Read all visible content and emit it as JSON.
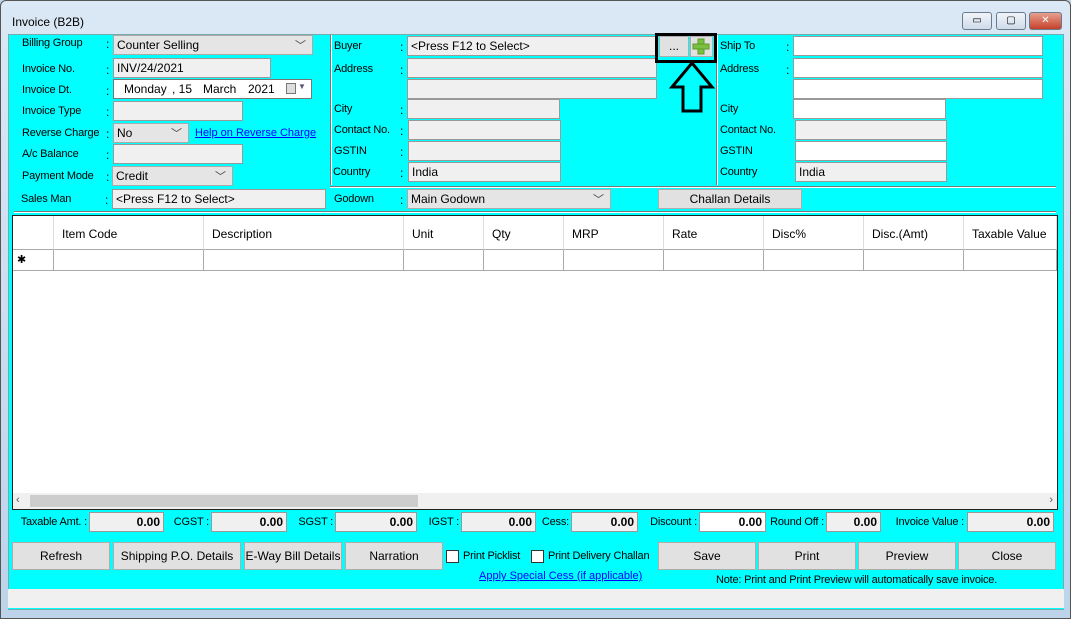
{
  "window": {
    "title": "Invoice (B2B)",
    "minimize": "▭",
    "maximize": "▢",
    "close": "✕"
  },
  "left": {
    "billing_group": {
      "label": "Billing Group",
      "value": "Counter Selling"
    },
    "invoice_no": {
      "label": "Invoice No.",
      "value": "INV/24/2021"
    },
    "invoice_dt": {
      "label": "Invoice Dt.",
      "day": "Monday",
      "date": ", 15",
      "month": "March",
      "year": "2021"
    },
    "invoice_type": {
      "label": "Invoice Type",
      "value": ""
    },
    "reverse_charge": {
      "label": "Reverse Charge",
      "value": "No",
      "help_link": "Help on Reverse Charge"
    },
    "ac_balance": {
      "label": "A/c Balance",
      "value": ""
    },
    "payment_mode": {
      "label": "Payment Mode",
      "value": "Credit"
    },
    "sales_man": {
      "label": "Sales Man",
      "value": "<Press F12 to Select>"
    }
  },
  "buyer": {
    "label": "Buyer",
    "value": "<Press F12 to Select>",
    "browse_label": "...",
    "address_label": "Address",
    "city_label": "City",
    "contact_label": "Contact No.",
    "gstin_label": "GSTIN",
    "country_label": "Country",
    "country": "India"
  },
  "ship_to": {
    "label": "Ship To",
    "address_label": "Address",
    "city_label": "City",
    "contact_label": "Contact No.",
    "gstin_label": "GSTIN",
    "country_label": "Country",
    "country": "India"
  },
  "godown": {
    "label": "Godown",
    "value": "Main Godown"
  },
  "challan_button": "Challan Details",
  "colon": ":",
  "grid": {
    "columns": [
      "Item Code",
      "Description",
      "Unit",
      "Qty",
      "MRP",
      "Rate",
      "Disc%",
      "Disc.(Amt)",
      "Taxable Value"
    ],
    "new_row_marker": "✱"
  },
  "totals": {
    "taxable": {
      "label": "Taxable Amt. :",
      "value": "0.00"
    },
    "cgst": {
      "label": "CGST :",
      "value": "0.00"
    },
    "sgst": {
      "label": "SGST :",
      "value": "0.00"
    },
    "igst": {
      "label": "IGST :",
      "value": "0.00"
    },
    "cess": {
      "label": "Cess:",
      "value": "0.00"
    },
    "discount": {
      "label": "Discount :",
      "value": "0.00"
    },
    "round_off": {
      "label": "Round Off :",
      "value": "0.00"
    },
    "invoice_value": {
      "label": "Invoice Value :",
      "value": "0.00"
    }
  },
  "buttons": {
    "refresh": "Refresh",
    "shipping": "Shipping P.O. Details",
    "eway": "E-Way Bill Details",
    "narration": "Narration",
    "save": "Save",
    "print": "Print",
    "preview": "Preview",
    "close": "Close"
  },
  "checkboxes": {
    "picklist": {
      "label": "Print Picklist",
      "checked": false
    },
    "delivery": {
      "label": "Print Delivery Challan",
      "checked": false
    }
  },
  "special_cess_link": "Apply Special Cess (if applicable)",
  "note": "Note: Print and Print Preview will automatically save invoice.",
  "colors": {
    "background": "#00ffff",
    "link": "#0000ff",
    "plus": "#7ac142"
  }
}
